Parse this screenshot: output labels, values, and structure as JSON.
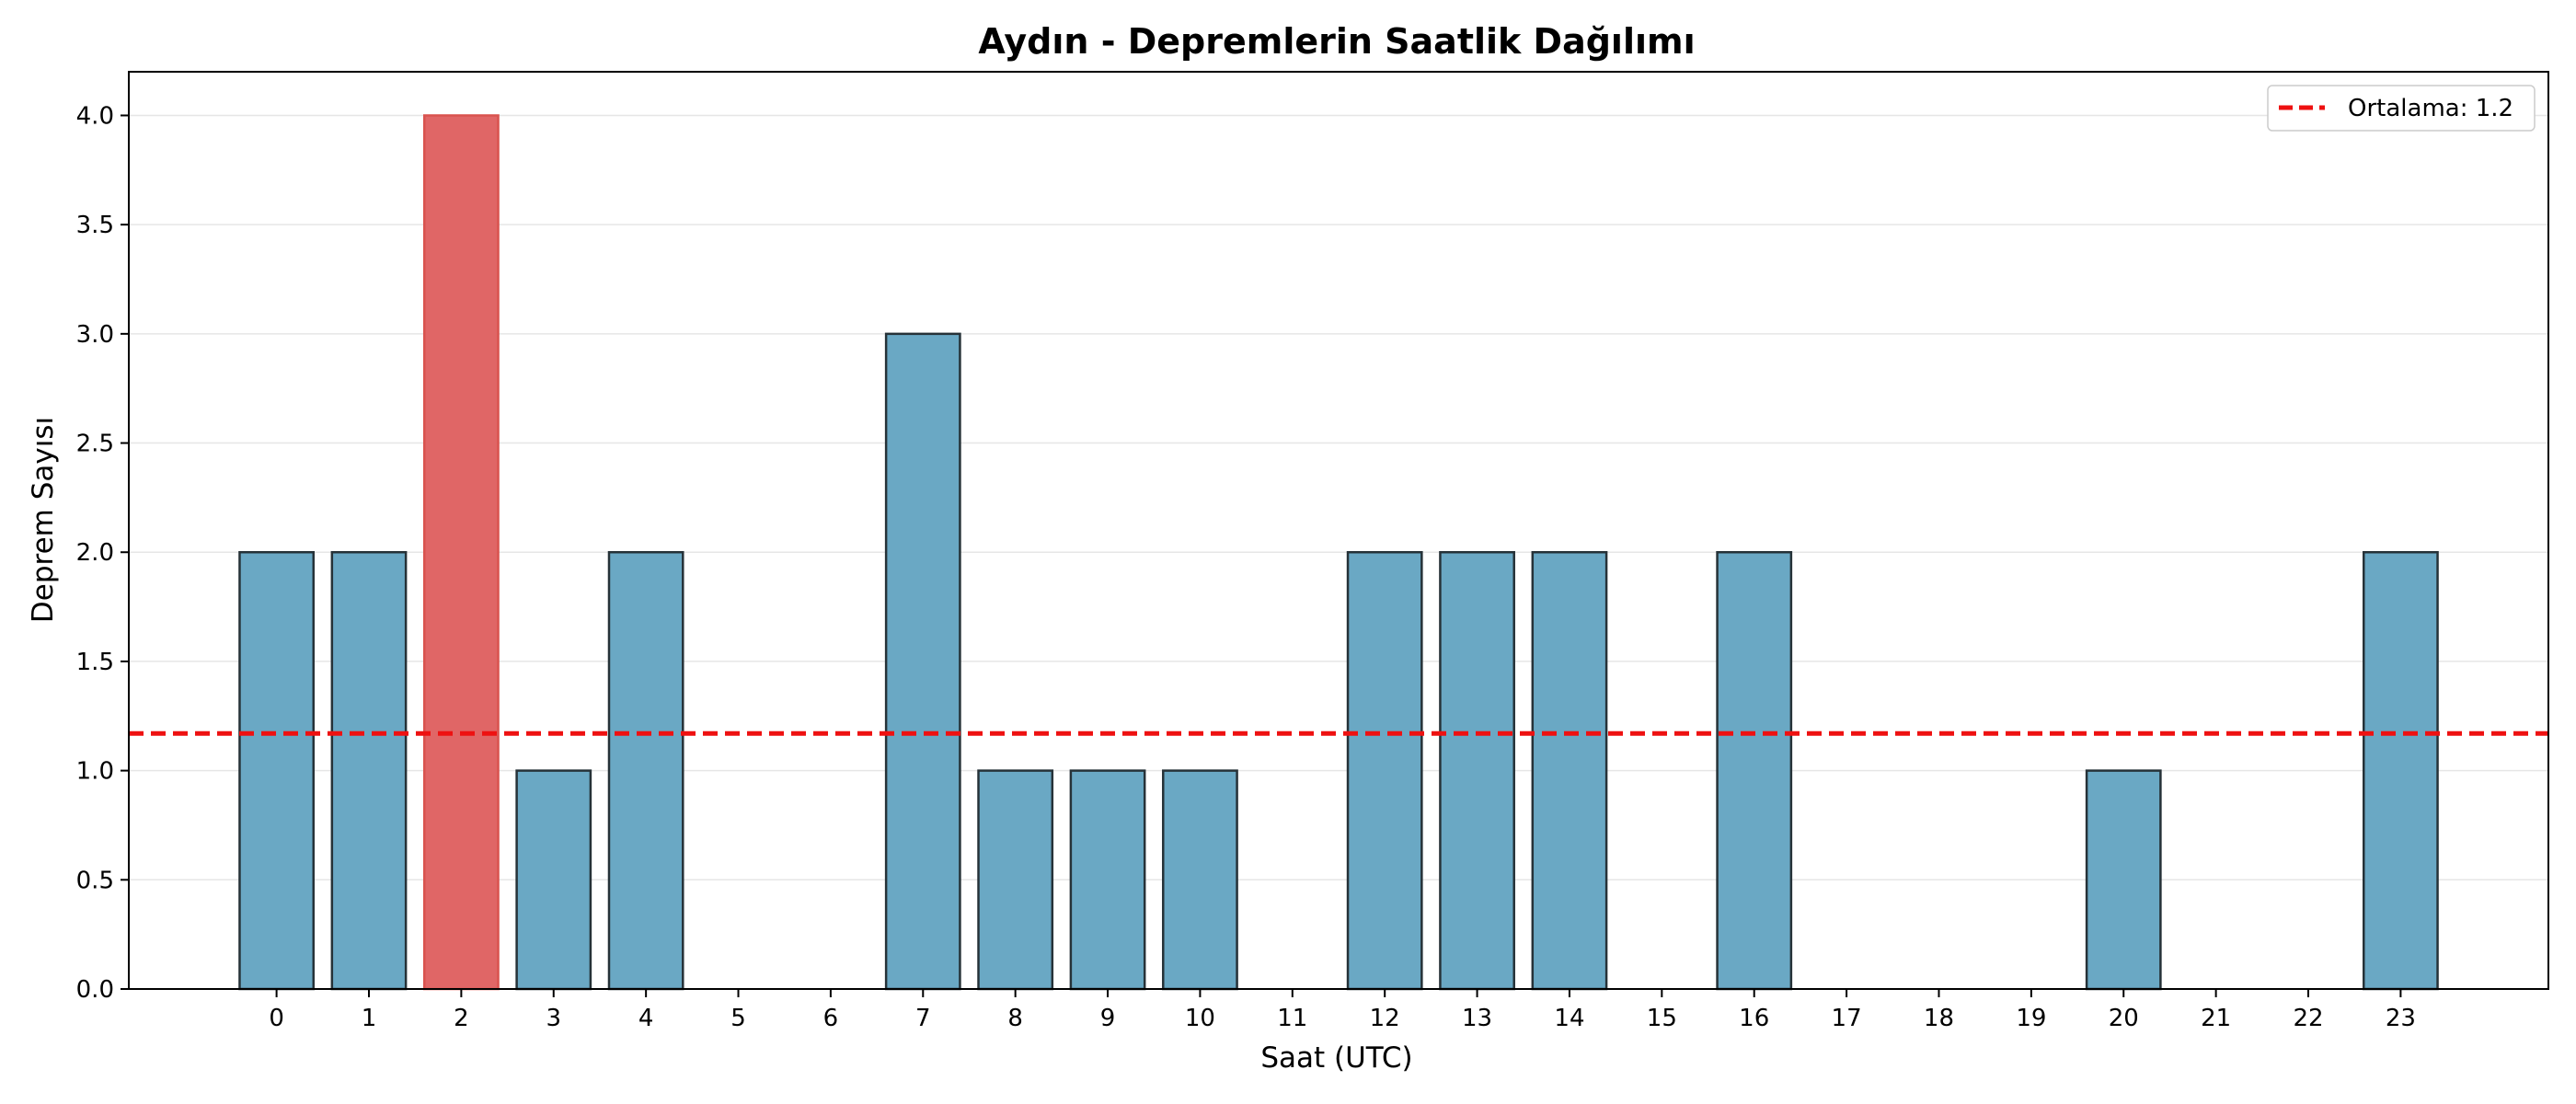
{
  "chart_data": {
    "type": "bar",
    "title": "Aydın - Depremlerin Saatlik Dağılımı",
    "xlabel": "Saat (UTC)",
    "ylabel": "Deprem Sayısı",
    "categories": [
      "0",
      "1",
      "2",
      "3",
      "4",
      "5",
      "6",
      "7",
      "8",
      "9",
      "10",
      "11",
      "12",
      "13",
      "14",
      "15",
      "16",
      "17",
      "18",
      "19",
      "20",
      "21",
      "22",
      "23"
    ],
    "values": [
      2,
      2,
      4,
      1,
      2,
      0,
      0,
      3,
      1,
      1,
      1,
      0,
      2,
      2,
      2,
      0,
      2,
      0,
      0,
      0,
      1,
      0,
      0,
      2
    ],
    "highlight_index": 2,
    "ylim": [
      0,
      4.2
    ],
    "xlim": [
      -1.6,
      24.6
    ],
    "yticks": [
      0.0,
      0.5,
      1.0,
      1.5,
      2.0,
      2.5,
      3.0,
      3.5,
      4.0
    ],
    "ytick_labels": [
      "0.0",
      "0.5",
      "1.0",
      "1.5",
      "2.0",
      "2.5",
      "3.0",
      "3.5",
      "4.0"
    ],
    "grid": "y",
    "mean_line": {
      "value": 1.17,
      "label": "Ortalama: 1.2"
    },
    "legend_position": "top-right",
    "colors": {
      "bar": "#6aa8c4",
      "highlight": "#e06666",
      "bar_edge": "#263238",
      "mean_line": "#ee1111",
      "grid": "#e6e6e6"
    }
  }
}
